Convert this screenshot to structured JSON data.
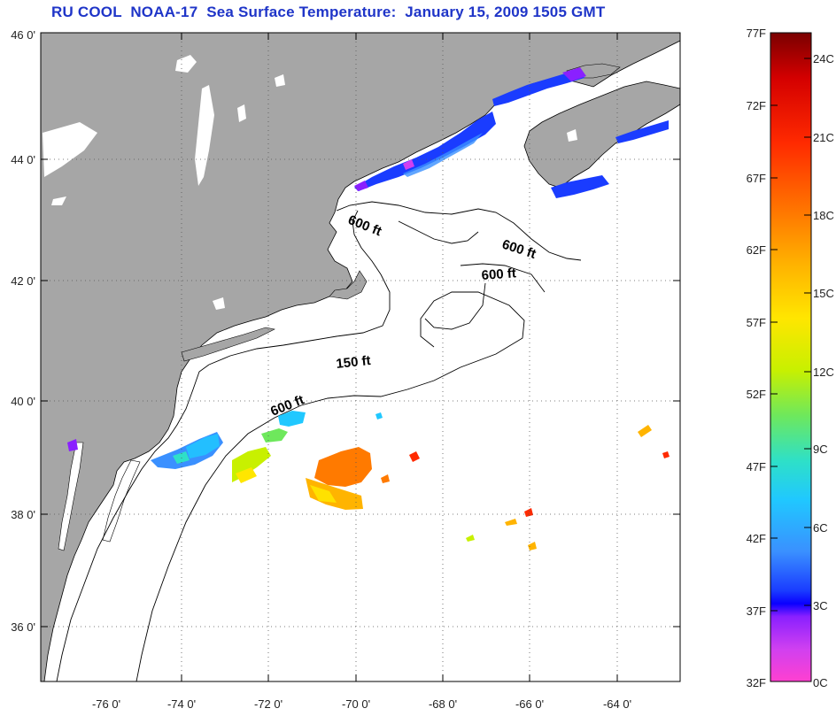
{
  "title": "RU COOL  NOAA-17  Sea Surface Temperature:  January 15, 2009 1505 GMT",
  "colors": {
    "title": "#1f35c8",
    "land": "#a6a6a6",
    "ocean": "#ffffff",
    "lakes": "#ffffff",
    "grid": "#555555"
  },
  "map": {
    "lon_ticks": [
      "-76 0'",
      "-74 0'",
      "-72 0'",
      "-70 0'",
      "-68 0'",
      "-66 0'",
      "-64 0'"
    ],
    "lat_ticks": [
      "46 0'",
      "44 0'",
      "42 0'",
      "40 0'",
      "38 0'",
      "36 0'"
    ],
    "grid": "dotted",
    "contour_labels": [
      "600 ft",
      "600 ft",
      "600 ft",
      "150 ft",
      "600 ft"
    ]
  },
  "colorbar": {
    "fahrenheit": [
      "77F",
      "72F",
      "67F",
      "62F",
      "57F",
      "52F",
      "47F",
      "42F",
      "37F",
      "32F"
    ],
    "celsius": [
      "24C",
      "21C",
      "18C",
      "15C",
      "12C",
      "9C",
      "6C",
      "3C",
      "0C"
    ],
    "gradient_colors": [
      "#7a0000",
      "#d40000",
      "#ff2a00",
      "#ff7a00",
      "#ffb400",
      "#ffe600",
      "#c8f000",
      "#6ee85c",
      "#2ee0c8",
      "#20c8ff",
      "#3a90ff",
      "#1a3cff",
      "#0a00ff",
      "#8a20ff",
      "#d040f0",
      "#ff40d0"
    ]
  }
}
